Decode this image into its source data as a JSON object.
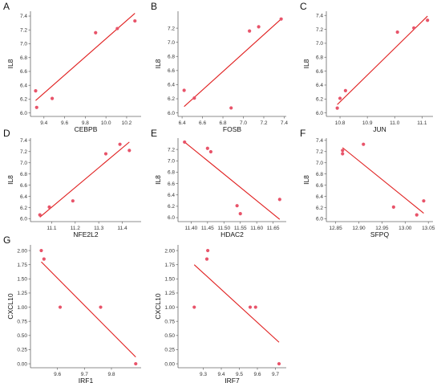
{
  "chart_data": [
    {
      "type": "scatter",
      "panel": "A",
      "xlabel": "CEBPB",
      "ylabel": "IL8",
      "xlim": [
        9.27,
        10.34
      ],
      "ylim": [
        5.95,
        7.47
      ],
      "xticks": [
        9.4,
        9.6,
        9.8,
        10.0,
        10.2
      ],
      "xtick_labels": [
        "9.4",
        "9.6",
        "9.8",
        "10.0",
        "10.2"
      ],
      "yticks": [
        6.0,
        6.2,
        6.4,
        6.6,
        6.8,
        7.0,
        7.2,
        7.4
      ],
      "ytick_labels": [
        "6.0",
        "6.2",
        "6.4",
        "6.6",
        "6.8",
        "7.0",
        "7.2",
        "7.4"
      ],
      "points": [
        [
          9.32,
          6.32
        ],
        [
          9.33,
          6.08
        ],
        [
          9.48,
          6.21
        ],
        [
          9.9,
          7.16
        ],
        [
          10.11,
          7.22
        ],
        [
          10.28,
          7.33
        ]
      ],
      "fit_line": [
        [
          9.32,
          6.18
        ],
        [
          10.28,
          7.44
        ]
      ]
    },
    {
      "type": "scatter",
      "panel": "B",
      "xlabel": "FOSB",
      "ylabel": "IL8",
      "xlim": [
        6.36,
        7.42
      ],
      "ylim": [
        5.95,
        7.44
      ],
      "xticks": [
        6.4,
        6.6,
        6.8,
        7.0,
        7.2,
        7.4
      ],
      "xtick_labels": [
        "6.4",
        "6.6",
        "6.8",
        "7.0",
        "7.2",
        "7.4"
      ],
      "yticks": [
        6.0,
        6.2,
        6.4,
        6.6,
        6.8,
        7.0,
        7.2
      ],
      "ytick_labels": [
        "6.0",
        "6.2",
        "6.4",
        "6.6",
        "6.8",
        "7.0",
        "7.2"
      ],
      "points": [
        [
          6.42,
          6.32
        ],
        [
          6.52,
          6.21
        ],
        [
          6.88,
          6.07
        ],
        [
          7.06,
          7.16
        ],
        [
          7.15,
          7.22
        ],
        [
          7.37,
          7.33
        ]
      ],
      "fit_line": [
        [
          6.42,
          6.09
        ],
        [
          7.37,
          7.33
        ]
      ]
    },
    {
      "type": "scatter",
      "panel": "C",
      "xlabel": "JUN",
      "ylabel": "IL8",
      "xlim": [
        10.75,
        11.14
      ],
      "ylim": [
        5.95,
        7.46
      ],
      "xticks": [
        10.8,
        10.9,
        11.0,
        11.1
      ],
      "xtick_labels": [
        "10.8",
        "10.9",
        "11.0",
        "11.1"
      ],
      "yticks": [
        6.0,
        6.2,
        6.4,
        6.6,
        6.8,
        7.0,
        7.2,
        7.4
      ],
      "ytick_labels": [
        "6.0",
        "6.2",
        "6.4",
        "6.6",
        "6.8",
        "7.0",
        "7.2",
        "7.4"
      ],
      "points": [
        [
          10.79,
          6.07
        ],
        [
          10.8,
          6.21
        ],
        [
          10.82,
          6.32
        ],
        [
          11.01,
          7.16
        ],
        [
          11.07,
          7.22
        ],
        [
          11.12,
          7.33
        ]
      ],
      "fit_line": [
        [
          10.79,
          6.12
        ],
        [
          11.12,
          7.39
        ]
      ]
    },
    {
      "type": "scatter",
      "panel": "D",
      "xlabel": "NFE2L2",
      "ylabel": "IL8",
      "xlim": [
        11.01,
        11.48
      ],
      "ylim": [
        5.95,
        7.44
      ],
      "xticks": [
        11.1,
        11.2,
        11.3,
        11.4
      ],
      "xtick_labels": [
        "11.1",
        "11.2",
        "11.3",
        "11.4"
      ],
      "yticks": [
        6.0,
        6.2,
        6.4,
        6.6,
        6.8,
        7.0,
        7.2,
        7.4
      ],
      "ytick_labels": [
        "6.0",
        "6.2",
        "6.4",
        "6.6",
        "6.8",
        "7.0",
        "7.2",
        "7.4"
      ],
      "points": [
        [
          11.05,
          6.07
        ],
        [
          11.09,
          6.21
        ],
        [
          11.19,
          6.32
        ],
        [
          11.33,
          7.16
        ],
        [
          11.39,
          7.33
        ],
        [
          11.43,
          7.22
        ]
      ],
      "fit_line": [
        [
          11.05,
          6.03
        ],
        [
          11.43,
          7.37
        ]
      ]
    },
    {
      "type": "scatter",
      "panel": "E",
      "xlabel": "HDAC2",
      "ylabel": "IL8",
      "xlim": [
        11.36,
        11.69
      ],
      "ylim": [
        5.93,
        7.4
      ],
      "xticks": [
        11.4,
        11.45,
        11.5,
        11.55,
        11.6,
        11.65
      ],
      "xtick_labels": [
        "11.40",
        "11.45",
        "11.50",
        "11.55",
        "11.60",
        "11.65"
      ],
      "yticks": [
        6.0,
        6.2,
        6.4,
        6.6,
        6.8,
        7.0,
        7.2
      ],
      "ytick_labels": [
        "6.0",
        "6.2",
        "6.4",
        "6.6",
        "6.8",
        "7.0",
        "7.2"
      ],
      "points": [
        [
          11.38,
          7.33
        ],
        [
          11.45,
          7.22
        ],
        [
          11.46,
          7.16
        ],
        [
          11.54,
          6.21
        ],
        [
          11.55,
          6.07
        ],
        [
          11.67,
          6.32
        ]
      ],
      "fit_line": [
        [
          11.38,
          7.33
        ],
        [
          11.67,
          5.97
        ]
      ]
    },
    {
      "type": "scatter",
      "panel": "F",
      "xlabel": "SFPQ",
      "ylabel": "IL8",
      "xlim": [
        12.83,
        13.06
      ],
      "ylim": [
        5.95,
        7.44
      ],
      "xticks": [
        12.85,
        12.9,
        12.95,
        13.0,
        13.05
      ],
      "xtick_labels": [
        "12.85",
        "12.90",
        "12.95",
        "13.00",
        "13.05"
      ],
      "yticks": [
        6.0,
        6.2,
        6.4,
        6.6,
        6.8,
        7.0,
        7.2,
        7.4
      ],
      "ytick_labels": [
        "6.0",
        "6.2",
        "6.4",
        "6.6",
        "6.8",
        "7.0",
        "7.2",
        "7.4"
      ],
      "points": [
        [
          12.865,
          7.22
        ],
        [
          12.865,
          7.16
        ],
        [
          12.91,
          7.33
        ],
        [
          12.975,
          6.21
        ],
        [
          13.025,
          6.07
        ],
        [
          13.04,
          6.32
        ]
      ],
      "fit_line": [
        [
          12.865,
          7.27
        ],
        [
          13.04,
          6.1
        ]
      ]
    },
    {
      "type": "scatter",
      "panel": "G",
      "xlabel": "IRF1",
      "ylabel": "CXCL10",
      "xlim": [
        9.5,
        9.91
      ],
      "ylim": [
        -0.07,
        2.1
      ],
      "xticks": [
        9.6,
        9.7,
        9.8
      ],
      "xtick_labels": [
        "9.6",
        "9.7",
        "9.8"
      ],
      "yticks": [
        0.0,
        0.25,
        0.5,
        0.75,
        1.0,
        1.25,
        1.5,
        1.75,
        2.0
      ],
      "ytick_labels": [
        "0.00",
        "0.25",
        "0.50",
        "0.75",
        "1.00",
        "1.25",
        "1.50",
        "1.75",
        "2.00"
      ],
      "points": [
        [
          9.54,
          2.0
        ],
        [
          9.55,
          1.85
        ],
        [
          9.61,
          1.0
        ],
        [
          9.76,
          1.0
        ],
        [
          9.89,
          0.0
        ]
      ],
      "fit_line": [
        [
          9.54,
          1.8
        ],
        [
          9.89,
          0.12
        ]
      ]
    },
    {
      "type": "scatter",
      "panel": "",
      "xlabel": "IRF7",
      "ylabel": "CXCL10",
      "xlim": [
        9.16,
        9.76
      ],
      "ylim": [
        -0.07,
        2.1
      ],
      "xticks": [
        9.3,
        9.4,
        9.5,
        9.6,
        9.7
      ],
      "xtick_labels": [
        "9.3",
        "9.4",
        "9.5",
        "9.6",
        "9.7"
      ],
      "yticks": [
        0.0,
        0.25,
        0.5,
        0.75,
        1.0,
        1.25,
        1.5,
        1.75,
        2.0
      ],
      "ytick_labels": [
        "0.00",
        "0.25",
        "0.50",
        "0.75",
        "1.00",
        "1.25",
        "1.50",
        "1.75",
        "2.00"
      ],
      "points": [
        [
          9.25,
          1.0
        ],
        [
          9.32,
          1.85
        ],
        [
          9.325,
          2.0
        ],
        [
          9.56,
          1.0
        ],
        [
          9.59,
          1.0
        ],
        [
          9.72,
          0.0
        ]
      ],
      "fit_line": [
        [
          9.25,
          1.75
        ],
        [
          9.72,
          0.38
        ]
      ]
    }
  ],
  "colors": {
    "point": "#e8546a",
    "fit_line": "#e01e1e",
    "axis": "#666666"
  }
}
